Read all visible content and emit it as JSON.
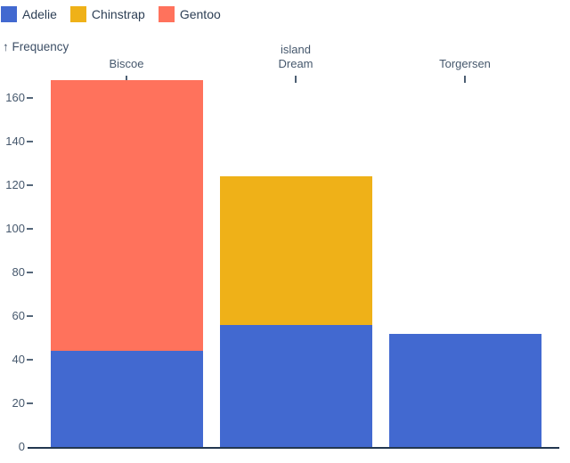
{
  "labels": {
    "y_axis_label": "↑ Frequency"
  },
  "chart_data": {
    "type": "bar",
    "stacked": true,
    "title": "",
    "xlabel": "island",
    "ylabel": "Frequency",
    "categories": [
      "Biscoe",
      "Dream",
      "Torgersen"
    ],
    "series": [
      {
        "name": "Adelie",
        "color": "#4269d0",
        "values": [
          44,
          56,
          52
        ]
      },
      {
        "name": "Chinstrap",
        "color": "#efb118",
        "values": [
          0,
          68,
          0
        ]
      },
      {
        "name": "Gentoo",
        "color": "#ff725c",
        "values": [
          124,
          0,
          0
        ]
      }
    ],
    "stack_order_bottom_to_top": [
      "Adelie",
      "Chinstrap",
      "Gentoo"
    ],
    "bar_totals": {
      "Biscoe": 168,
      "Dream": 124,
      "Torgersen": 52
    },
    "y_ticks": [
      0,
      20,
      40,
      60,
      80,
      100,
      120,
      140,
      160
    ],
    "ylim": [
      0,
      160
    ],
    "grid": false,
    "legend": {
      "position": "top-left"
    },
    "x_axis_position": "top"
  }
}
